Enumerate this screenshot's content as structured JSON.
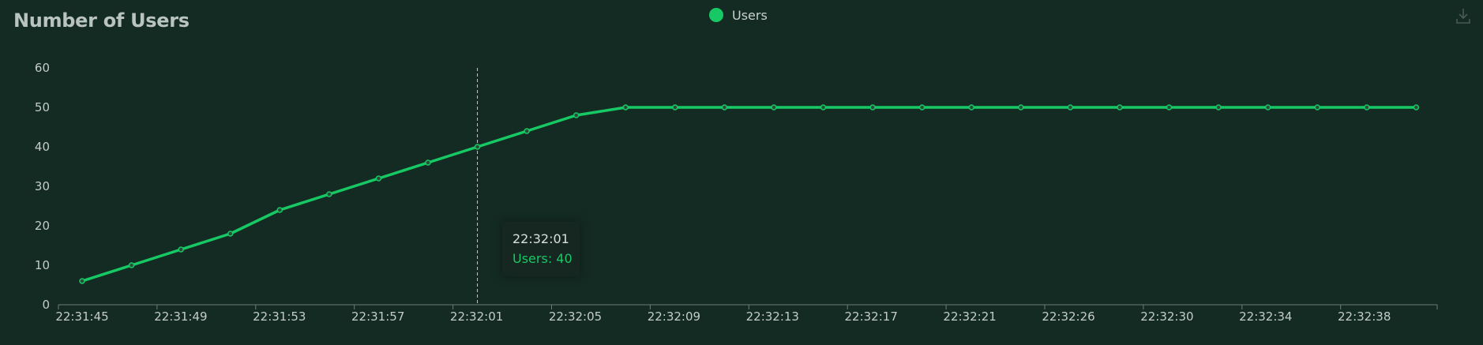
{
  "colors": {
    "background": "#132b22",
    "series": "#17c964",
    "axis_text": "#c4ccc8",
    "axis_line": "#6e7c76",
    "crosshair": "#c4ccc8"
  },
  "toolbar": {
    "download_icon": "download-icon"
  },
  "tooltip": {
    "x_label": "22:32:01",
    "series_label": "Users",
    "separator": ": ",
    "value": "40"
  },
  "chart_data": {
    "type": "line",
    "title": "Number of Users",
    "legend": {
      "position": "top-center",
      "entries": [
        "Users"
      ]
    },
    "xlabel": "",
    "ylabel": "",
    "ylim": [
      0,
      60
    ],
    "yticks": [
      0,
      10,
      20,
      30,
      40,
      50,
      60
    ],
    "grid": false,
    "x": [
      "22:31:45",
      "22:31:47",
      "22:31:49",
      "22:31:51",
      "22:31:53",
      "22:31:55",
      "22:31:57",
      "22:31:59",
      "22:32:01",
      "22:32:03",
      "22:32:05",
      "22:32:07",
      "22:32:09",
      "22:32:11",
      "22:32:13",
      "22:32:15",
      "22:32:17",
      "22:32:19",
      "22:32:21",
      "22:32:23",
      "22:32:26",
      "22:32:28",
      "22:32:30",
      "22:32:32",
      "22:32:34",
      "22:32:36",
      "22:32:38",
      "22:32:40"
    ],
    "xtick_labels": [
      "22:31:45",
      "22:31:49",
      "22:31:53",
      "22:31:57",
      "22:32:01",
      "22:32:05",
      "22:32:09",
      "22:32:13",
      "22:32:17",
      "22:32:21",
      "22:32:26",
      "22:32:30",
      "22:32:34",
      "22:32:38"
    ],
    "series": [
      {
        "name": "Users",
        "values": [
          6,
          10,
          14,
          18,
          24,
          28,
          32,
          36,
          40,
          44,
          48,
          50,
          50,
          50,
          50,
          50,
          50,
          50,
          50,
          50,
          50,
          50,
          50,
          50,
          50,
          50,
          50,
          50
        ]
      }
    ],
    "highlight_index": 8
  }
}
